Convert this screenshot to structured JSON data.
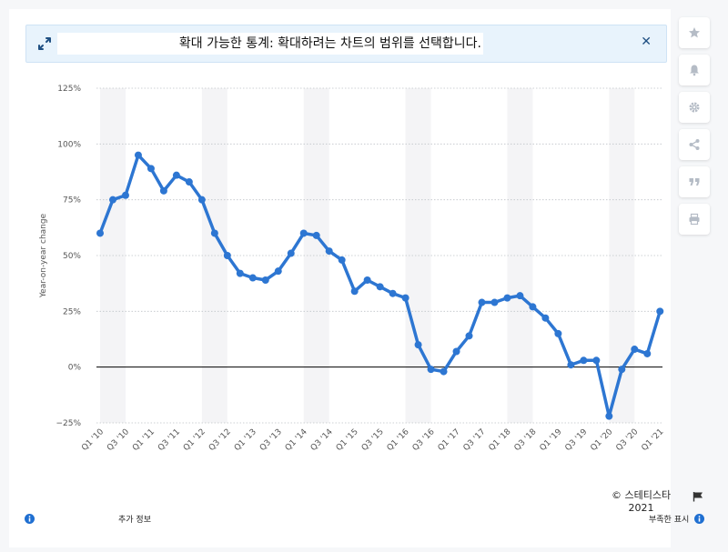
{
  "banner": {
    "text": "확대 가능한 통계: 확대하려는 차트의 범위를 선택합니다."
  },
  "footer": {
    "copyright": "© 스테티스타",
    "year": "2021",
    "more_info": "추가 정보",
    "show_source": "부족한 표시"
  },
  "colors": {
    "line": "#2d76d2",
    "band": "#f4f4f6",
    "banner_bg": "#e8f3fc",
    "accent": "#1f4f82"
  },
  "sidebar": {
    "icons": [
      "star-icon",
      "bell-icon",
      "gear-icon",
      "share-icon",
      "quote-icon",
      "print-icon"
    ]
  },
  "chart_data": {
    "type": "line",
    "ylabel": "Year-on-year change",
    "xlabel": "",
    "title": "",
    "ylim": [
      -25,
      125
    ],
    "yticks": [
      -25,
      0,
      25,
      50,
      75,
      100,
      125
    ],
    "ytick_labels": [
      "−25%",
      "0%",
      "25%",
      "50%",
      "75%",
      "100%",
      "125%"
    ],
    "grid": true,
    "x": [
      "Q1 '10",
      "Q2 '10",
      "Q3 '10",
      "Q4 '10",
      "Q1 '11",
      "Q2 '11",
      "Q3 '11",
      "Q4 '11",
      "Q1 '12",
      "Q2 '12",
      "Q3 '12",
      "Q4 '12",
      "Q1 '13",
      "Q2 '13",
      "Q3 '13",
      "Q4 '13",
      "Q1 '14",
      "Q2 '14",
      "Q3 '14",
      "Q4 '14",
      "Q1 '15",
      "Q2 '15",
      "Q3 '15",
      "Q4 '15",
      "Q1 '16",
      "Q2 '16",
      "Q3 '16",
      "Q4 '16",
      "Q1 '17",
      "Q2 '17",
      "Q3 '17",
      "Q4 '17",
      "Q1 '18",
      "Q2 '18",
      "Q3 '18",
      "Q4 '18",
      "Q1 '19",
      "Q2 '19",
      "Q3 '19",
      "Q4 '19",
      "Q1 '20",
      "Q2 '20",
      "Q3 '20",
      "Q4 '20",
      "Q1 '21"
    ],
    "x_tick_labels": [
      "Q1 '10",
      "Q3 '10",
      "Q1 '11",
      "Q3 '11",
      "Q1 '12",
      "Q3 '12",
      "Q1 '13",
      "Q3 '13",
      "Q1 '14",
      "Q3 '14",
      "Q1 '15",
      "Q3 '15",
      "Q1 '16",
      "Q3 '16",
      "Q1 '17",
      "Q3 '17",
      "Q1 '18",
      "Q3 '18",
      "Q1 '19",
      "Q3 '19",
      "Q1 '20",
      "Q3 '20",
      "Q1 '21"
    ],
    "series": [
      {
        "values": [
          60,
          75,
          77,
          95,
          89,
          79,
          86,
          83,
          75,
          60,
          50,
          42,
          40,
          39,
          43,
          51,
          60,
          59,
          52,
          48,
          34,
          39,
          36,
          33,
          31,
          10,
          -1,
          -2,
          7,
          14,
          29,
          29,
          31,
          32,
          27,
          22,
          15,
          1,
          3,
          3,
          -22,
          -1,
          8,
          6,
          25
        ]
      }
    ]
  }
}
